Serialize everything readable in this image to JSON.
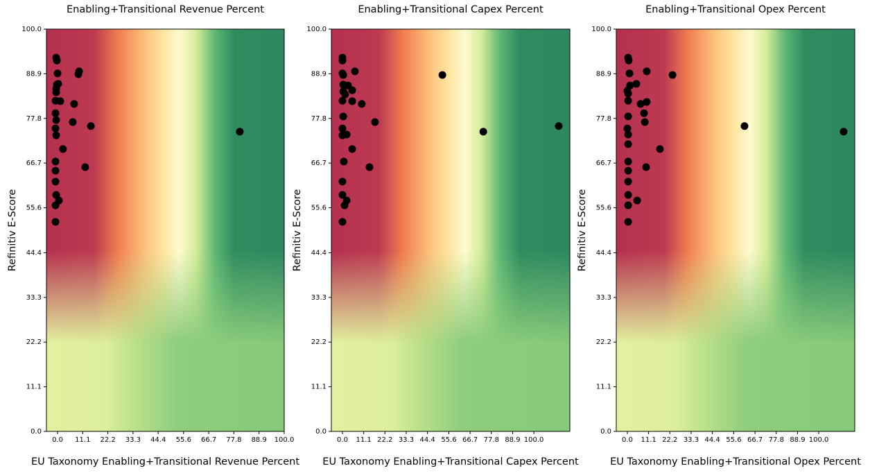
{
  "chart_data": [
    {
      "type": "scatter",
      "title": "Enabling+Transitional Revenue Percent",
      "xlabel": "EU Taxonomy Enabling+Transitional Revenue Percent",
      "ylabel": "Refinitiv E-Score",
      "color": "#000000",
      "x": [
        -0.6,
        -0.3,
        0,
        9.5,
        9.2,
        -0.3,
        0.3,
        -0.6,
        -0.6,
        -0.9,
        1.2,
        7.3,
        -0.9,
        -0.6,
        6.7,
        14.7,
        -0.9,
        -0.6,
        80.4,
        2.4,
        -0.9,
        -0.9,
        12.2,
        -0.9,
        -0.6,
        0.6,
        -0.9,
        -0.9
      ],
      "values": [
        92.9,
        92.2,
        89.0,
        89.5,
        88.8,
        86.2,
        86.4,
        85.2,
        84.3,
        82.2,
        82.1,
        81.4,
        79.1,
        77.4,
        76.9,
        75.9,
        75.3,
        73.6,
        74.5,
        70.2,
        67.1,
        64.8,
        65.7,
        62.1,
        58.8,
        57.4,
        56.2,
        52.1
      ],
      "xlim": [
        -4.9,
        100
      ],
      "ylim": [
        0,
        100
      ],
      "xticks": [
        {
          "value": 0,
          "label": "0.0"
        },
        11.1,
        22.2,
        33.3,
        44.4,
        55.6,
        66.7,
        77.8,
        88.9,
        {
          "value": 100,
          "label": "100.0"
        }
      ],
      "yticks": [
        {
          "value": 0,
          "label": "0.0"
        },
        11.1,
        22.2,
        33.3,
        44.4,
        55.6,
        66.7,
        77.8,
        88.9,
        {
          "value": 100,
          "label": "100.0"
        }
      ]
    },
    {
      "type": "scatter",
      "title": "Enabling+Transitional Capex Percent",
      "xlabel": "EU Taxonomy Enabling+Transitional Capex Percent",
      "ylabel": "Refinitiv E-Score",
      "color": "#000000",
      "x": [
        0,
        0,
        0,
        0.4,
        6.5,
        52.2,
        0.4,
        2.9,
        5.1,
        0.4,
        1.4,
        0,
        5.1,
        10.1,
        0.4,
        17.0,
        0,
        2.2,
        0,
        73.6,
        113.0,
        5.1,
        0.7,
        14.1,
        0,
        0,
        2.2,
        1.1,
        0
      ],
      "values": [
        92.9,
        92.2,
        89.0,
        88.6,
        89.5,
        88.6,
        86.2,
        86.0,
        84.8,
        84.5,
        83.8,
        82.2,
        82.1,
        81.4,
        78.3,
        76.9,
        75.3,
        73.8,
        73.6,
        74.5,
        75.9,
        70.2,
        67.1,
        65.7,
        62.1,
        58.8,
        57.4,
        56.2,
        52.1
      ],
      "xlim": [
        -5.8,
        118.8
      ],
      "ylim": [
        0,
        100
      ],
      "xticks": [
        {
          "value": 0,
          "label": "0.0"
        },
        11.1,
        22.2,
        33.3,
        44.4,
        55.6,
        66.7,
        77.8,
        88.9,
        {
          "value": 100,
          "label": "100.0"
        }
      ],
      "yticks": [
        {
          "value": 0,
          "label": "0.0"
        },
        11.1,
        22.2,
        33.3,
        44.4,
        55.6,
        66.7,
        77.8,
        88.9,
        {
          "value": 100,
          "label": "100.0"
        }
      ]
    },
    {
      "type": "scatter",
      "title": "Enabling+Transitional Opex Percent",
      "xlabel": "EU Taxonomy Enabling+Transitional Opex Percent",
      "ylabel": "Refinitiv E-Score",
      "color": "#000000",
      "x": [
        0.4,
        0.7,
        1.1,
        10.1,
        23.6,
        1.4,
        4.7,
        0,
        0.4,
        0.4,
        6.9,
        10.1,
        8.7,
        0.4,
        9.1,
        61.2,
        0,
        0.4,
        113.0,
        0.4,
        17.0,
        0.4,
        9.8,
        0.4,
        0.4,
        0.4,
        5.1,
        0.4,
        0.4
      ],
      "values": [
        92.9,
        92.2,
        89.0,
        89.5,
        88.6,
        86.0,
        86.4,
        84.7,
        84.0,
        82.2,
        81.4,
        81.9,
        79.1,
        78.3,
        76.9,
        75.9,
        75.3,
        73.8,
        74.5,
        71.4,
        70.2,
        67.1,
        65.7,
        64.8,
        62.1,
        58.8,
        57.4,
        56.2,
        52.1
      ],
      "xlim": [
        -5.8,
        118.8
      ],
      "ylim": [
        0,
        100
      ],
      "xticks": [
        {
          "value": 0,
          "label": "0.0"
        },
        11.1,
        22.2,
        33.3,
        44.4,
        55.6,
        66.7,
        77.8,
        88.9,
        {
          "value": 100,
          "label": "100.0"
        }
      ],
      "yticks": [
        {
          "value": 0,
          "label": "0.0"
        },
        11.1,
        22.2,
        33.3,
        44.4,
        55.6,
        66.7,
        77.8,
        88.9,
        {
          "value": 100,
          "label": "100.0"
        }
      ]
    }
  ]
}
